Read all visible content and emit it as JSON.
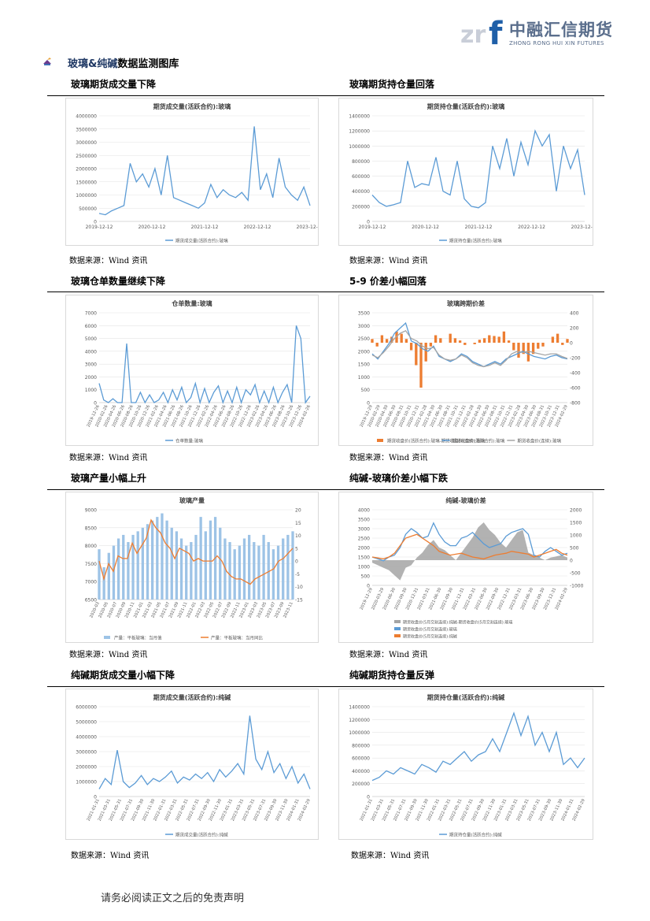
{
  "logo": {
    "cn": "中融汇信期货",
    "en": "ZHONG RONG HUI XIN FUTURES",
    "mark": "zrf"
  },
  "section": {
    "title_blue": "玻璃&纯碱",
    "title_rest": "数据监测图库"
  },
  "rows": [
    {
      "left": "玻璃期货成交量下降",
      "right": "玻璃期货持仓量回落"
    },
    {
      "left": "玻璃仓单数量继续下降",
      "right": "5-9 价差小幅回落"
    },
    {
      "left": "玻璃产量小幅上升",
      "right": "纯碱-玻璃价差小幅下跌"
    },
    {
      "left": "纯碱期货成交量小幅下降",
      "right": "纯碱期货持仓量反弹"
    }
  ],
  "source_text": "数据来源：Wind 资讯",
  "footer": "请务必阅读正文之后的免责声明",
  "colors": {
    "blue": "#5b9bd5",
    "orange": "#ed7d31",
    "gray": "#a5a5a5",
    "grid": "#e3e3e3"
  },
  "chart_data": [
    {
      "id": "c1",
      "type": "line",
      "title": "期货成交量(活跃合约):玻璃",
      "yticks": [
        0,
        500000,
        1000000,
        1500000,
        2000000,
        2500000,
        3000000,
        3500000,
        4000000
      ],
      "ylim": [
        0,
        4000000
      ],
      "xticks": [
        "2019-12-12",
        "2020-12-12",
        "2021-12-12",
        "2022-12-12",
        "2023-12-12"
      ],
      "series": [
        {
          "name": "期货成交量(活跃合约):玻璃",
          "color": "#5b9bd5",
          "values": [
            300000,
            250000,
            400000,
            500000,
            600000,
            2200000,
            1500000,
            1800000,
            1300000,
            2000000,
            1000000,
            2500000,
            900000,
            800000,
            700000,
            600000,
            500000,
            700000,
            1400000,
            900000,
            1200000,
            1000000,
            900000,
            1100000,
            800000,
            3600000,
            1200000,
            1800000,
            900000,
            2400000,
            1300000,
            1000000,
            800000,
            1300000,
            600000
          ]
        }
      ]
    },
    {
      "id": "c2",
      "type": "line",
      "title": "期货持仓量(活跃合约):玻璃",
      "yticks": [
        0,
        200000,
        400000,
        600000,
        800000,
        1000000,
        1200000,
        1400000
      ],
      "ylim": [
        0,
        1400000
      ],
      "xticks": [
        "2019-12-12",
        "2020-12-12",
        "2021-12-12",
        "2022-12-12",
        "2023-12-12"
      ],
      "series": [
        {
          "name": "期货持仓量(活跃合约):玻璃",
          "color": "#5b9bd5",
          "values": [
            350000,
            250000,
            200000,
            220000,
            250000,
            800000,
            450000,
            500000,
            480000,
            850000,
            400000,
            350000,
            800000,
            300000,
            200000,
            180000,
            250000,
            1000000,
            700000,
            1100000,
            600000,
            1050000,
            750000,
            1200000,
            1000000,
            1150000,
            400000,
            1000000,
            700000,
            950000,
            350000
          ]
        }
      ]
    },
    {
      "id": "c3",
      "type": "line",
      "title": "仓单数量:玻璃",
      "yticks": [
        0,
        1000,
        2000,
        3000,
        4000,
        5000,
        6000,
        7000
      ],
      "ylim": [
        0,
        7000
      ],
      "xticks": [
        "2019-12-26",
        "2020-02-26",
        "2020-04-26",
        "2020-06-26",
        "2020-08-26",
        "2020-10-26",
        "2020-12-26",
        "2021-02-26",
        "2021-04-26",
        "2021-06-26",
        "2021-08-26",
        "2021-10-26",
        "2021-12-26",
        "2022-02-26",
        "2022-04-26",
        "2022-06-26",
        "2022-08-26",
        "2022-10-26",
        "2022-12-26",
        "2023-02-26",
        "2023-04-26",
        "2023-06-26",
        "2023-08-26",
        "2023-10-26",
        "2023-12-26",
        "2024-02-26"
      ],
      "series": [
        {
          "name": "仓单数量:玻璃",
          "color": "#5b9bd5",
          "values": [
            1500,
            200,
            0,
            300,
            0,
            0,
            4600,
            0,
            0,
            800,
            0,
            600,
            0,
            200,
            800,
            0,
            1000,
            200,
            1200,
            0,
            400,
            1500,
            0,
            1100,
            0,
            800,
            1300,
            0,
            900,
            0,
            1200,
            0,
            1000,
            600,
            1400,
            0,
            900,
            0,
            1200,
            0,
            800,
            1400,
            0,
            6000,
            5000,
            0,
            500
          ]
        }
      ]
    },
    {
      "id": "c4",
      "type": "combo",
      "title": "玻璃跨期价差",
      "yticks": [
        0,
        500,
        1000,
        1500,
        2000,
        2500,
        3000,
        3500
      ],
      "ylim": [
        0,
        3500
      ],
      "y2ticks": [
        -800,
        -600,
        -400,
        -200,
        0,
        200,
        400
      ],
      "y2lim": [
        -800,
        400
      ],
      "xticks": [
        "2019-12-29",
        "2020-02-29",
        "2020-04-30",
        "2020-06-30",
        "2020-08-31",
        "2020-10-31",
        "2020-12-31",
        "2021-02-28",
        "2021-04-30",
        "2021-06-30",
        "2021-08-31",
        "2021-10-31",
        "2021-12-31",
        "2022-02-28",
        "2022-04-30",
        "2022-06-30",
        "2022-08-31",
        "2022-10-31",
        "2022-12-31",
        "2023-02-28",
        "2023-04-30",
        "2023-06-30",
        "2023-08-31",
        "2023-10-31",
        "2023-12-31",
        "2024-02-29"
      ],
      "series": [
        {
          "name": "期货收盘价(活跃合约):玻璃-期货收盘价(连续):玻璃",
          "color": "#ed7d31",
          "kind": "bar",
          "axis": "right",
          "values": [
            50,
            -50,
            100,
            50,
            80,
            150,
            120,
            50,
            -100,
            -300,
            -600,
            -250,
            -50,
            100,
            60,
            0,
            120,
            60,
            30,
            -30,
            0,
            -20,
            40,
            60,
            100,
            90,
            80,
            150,
            30,
            -100,
            -200,
            -150,
            -250,
            -150,
            -80,
            -50,
            0,
            80,
            120,
            -30,
            50
          ]
        },
        {
          "name": "期货收盘价(活跃合约):玻璃",
          "color": "#5b9bd5",
          "kind": "line",
          "axis": "left",
          "values": [
            1900,
            1700,
            2000,
            2300,
            2700,
            2900,
            3100,
            2400,
            2300,
            2100,
            2000,
            2200,
            1800,
            1700,
            1600,
            1700,
            1900,
            1800,
            1600,
            1500,
            1400,
            1500,
            1600,
            1500,
            1700,
            1800,
            1900,
            2000,
            1900,
            1800,
            1750,
            1700,
            1800,
            1850,
            1750,
            1700
          ]
        },
        {
          "name": "期货收盘价(连续):玻璃",
          "color": "#a5a5a5",
          "kind": "line",
          "axis": "left",
          "values": [
            1850,
            1750,
            1950,
            2200,
            2500,
            2700,
            2800,
            2500,
            2400,
            2200,
            2100,
            2150,
            1850,
            1700,
            1650,
            1700,
            1850,
            1750,
            1550,
            1450,
            1400,
            1450,
            1550,
            1450,
            1650,
            1900,
            2000,
            1950,
            2000,
            1950,
            1900,
            1850,
            1900,
            1900,
            1800,
            1720
          ]
        }
      ]
    },
    {
      "id": "c5",
      "type": "combo",
      "title": "玻璃产量",
      "yticks": [
        6500,
        7000,
        7500,
        8000,
        8500,
        9000
      ],
      "ylim": [
        6500,
        9000
      ],
      "y2ticks": [
        -15,
        -10,
        -5,
        0,
        5,
        10,
        15,
        20
      ],
      "y2lim": [
        -15,
        20
      ],
      "xticks": [
        "2020-03",
        "2020-05",
        "2020-07",
        "2020-09",
        "2020-11",
        "2021-01",
        "2021-03",
        "2021-05",
        "2021-07",
        "2021-09",
        "2021-11",
        "2022-01",
        "2022-03",
        "2022-05",
        "2022-07",
        "2022-09",
        "2022-11",
        "2023-01",
        "2023-03",
        "2023-05",
        "2023-07",
        "2023-09",
        "2023-11"
      ],
      "series": [
        {
          "name": "产量：平板玻璃：当月值",
          "color": "#9dc3e6",
          "kind": "bar",
          "axis": "left",
          "values": [
            7900,
            7400,
            7800,
            8000,
            8200,
            8300,
            8100,
            8300,
            8400,
            8500,
            8600,
            8700,
            8800,
            8900,
            8700,
            8500,
            8400,
            8200,
            8000,
            8100,
            8300,
            8800,
            8400,
            8700,
            8800,
            8500,
            8200,
            8100,
            7900,
            8000,
            8200,
            8300,
            8100,
            8000,
            8300,
            8100,
            7900,
            8000,
            8200,
            8300,
            8400
          ]
        },
        {
          "name": "产量：平板玻璃：当月同比",
          "color": "#ed7d31",
          "kind": "line",
          "axis": "right",
          "values": [
            0,
            -7,
            -1,
            -4,
            2,
            1,
            1,
            7,
            3,
            6,
            9,
            16,
            13,
            11,
            7,
            5,
            1,
            5,
            4,
            3,
            0,
            1,
            0,
            0,
            0,
            2,
            0,
            -4,
            -6,
            -7,
            -7,
            -8,
            -9,
            -7,
            -6,
            -5,
            -4,
            -3,
            0,
            1,
            3,
            5
          ]
        }
      ]
    },
    {
      "id": "c6",
      "type": "combo",
      "title": "纯碱-玻璃价差",
      "yticks": [
        0,
        500,
        1000,
        1500,
        2000,
        2500,
        3000,
        3500,
        4000
      ],
      "ylim": [
        0,
        4000
      ],
      "y2ticks": [
        -1000,
        -500,
        0,
        500,
        1000,
        1500,
        2000
      ],
      "y2lim": [
        -1000,
        2000
      ],
      "xticks": [
        "2019-12-29",
        "2020-03-29",
        "2020-06-30",
        "2020-09-30",
        "2020-12-31",
        "2021-03-31",
        "2021-06-30",
        "2021-09-30",
        "2021-12-31",
        "2022-03-31",
        "2022-06-30",
        "2022-09-30",
        "2022-12-31",
        "2023-03-31",
        "2023-06-30",
        "2023-09-30",
        "2023-12-31",
        "2024-02-29"
      ],
      "series": [
        {
          "name": "期货收盘价(5月交割连续):纯碱-期货收盘价(5月交割连续):玻璃",
          "color": "#a5a5a5",
          "kind": "area",
          "axis": "right",
          "values": [
            -100,
            -200,
            -300,
            -400,
            -600,
            -800,
            -300,
            -200,
            100,
            300,
            600,
            800,
            500,
            400,
            200,
            0,
            300,
            600,
            900,
            1300,
            1500,
            1200,
            1000,
            700,
            500,
            800,
            1100,
            1200,
            300,
            200,
            100,
            0,
            100,
            150,
            200,
            100
          ]
        },
        {
          "name": "期货收盘价(5月交割连续):玻璃",
          "color": "#5b9bd5",
          "kind": "line",
          "axis": "left",
          "values": [
            1500,
            1400,
            1300,
            1500,
            1600,
            2000,
            2700,
            3000,
            2800,
            2500,
            2600,
            3300,
            2700,
            2300,
            2100,
            2100,
            2500,
            2600,
            2800,
            2500,
            2200,
            2000,
            2100,
            2200,
            2600,
            2800,
            2900,
            3000,
            2700,
            1600,
            1500,
            1800,
            2000,
            1800,
            1600,
            1700
          ]
        },
        {
          "name": "期货收盘价(5月交割连续):纯碱",
          "color": "#ed7d31",
          "kind": "line",
          "axis": "left",
          "values": [
            1500,
            1450,
            1400,
            1500,
            1700,
            2100,
            2500,
            2600,
            2700,
            2500,
            2300,
            2100,
            1800,
            1700,
            1600,
            1650,
            1700,
            1600,
            1500,
            1450,
            1400,
            1500,
            1600,
            1650,
            1700,
            1800,
            1750,
            1700,
            1650,
            1500,
            1600,
            1700,
            1800,
            1900,
            1700,
            1600
          ]
        }
      ]
    },
    {
      "id": "c7",
      "type": "line",
      "title": "期货成交量(活跃合约):纯碱",
      "yticks": [
        0,
        1000000,
        2000000,
        3000000,
        4000000,
        5000000,
        6000000
      ],
      "ylim": [
        0,
        6000000
      ],
      "xticks": [
        "2021-01-31",
        "2021-03-31",
        "2021-05-31",
        "2021-07-31",
        "2021-09-30",
        "2021-11-30",
        "2022-01-31",
        "2022-03-31",
        "2022-05-31",
        "2022-07-31",
        "2022-09-30",
        "2022-11-30",
        "2023-01-31",
        "2023-03-31",
        "2023-05-31",
        "2023-07-31",
        "2023-09-30",
        "2023-11-30",
        "2024-01-31",
        "2024-02-29"
      ],
      "series": [
        {
          "name": "期货成交量(活跃合约):纯碱",
          "color": "#5b9bd5",
          "values": [
            500000,
            1200000,
            800000,
            3100000,
            1000000,
            600000,
            900000,
            1400000,
            800000,
            1200000,
            1000000,
            1300000,
            1700000,
            900000,
            1300000,
            1100000,
            1500000,
            1200000,
            1600000,
            1000000,
            1800000,
            1300000,
            1700000,
            2200000,
            1500000,
            5400000,
            2500000,
            1800000,
            3000000,
            1600000,
            2200000,
            1200000,
            2000000,
            900000,
            1500000,
            500000
          ]
        }
      ]
    },
    {
      "id": "c8",
      "type": "line",
      "title": "期货持仓量(活跃合约):纯碱",
      "yticks": [
        0,
        200000,
        400000,
        600000,
        800000,
        1000000,
        1200000,
        1400000
      ],
      "ylim": [
        0,
        1400000
      ],
      "xticks": [
        "2021-01-31",
        "2021-03-31",
        "2021-05-31",
        "2021-07-31",
        "2021-09-30",
        "2021-11-30",
        "2022-01-31",
        "2022-03-31",
        "2022-05-31",
        "2022-07-31",
        "2022-09-30",
        "2022-11-30",
        "2023-01-31",
        "2023-03-31",
        "2023-05-31",
        "2023-07-31",
        "2023-09-30",
        "2023-11-30",
        "2024-01-31",
        "2024-02-29"
      ],
      "series": [
        {
          "name": "期货持仓量(活跃合约):纯碱",
          "color": "#5b9bd5",
          "values": [
            250000,
            300000,
            400000,
            350000,
            450000,
            400000,
            350000,
            500000,
            450000,
            380000,
            550000,
            500000,
            600000,
            700000,
            550000,
            650000,
            700000,
            900000,
            700000,
            1000000,
            1300000,
            950000,
            1250000,
            800000,
            1000000,
            700000,
            1000000,
            500000,
            600000,
            450000,
            600000
          ]
        }
      ]
    }
  ]
}
